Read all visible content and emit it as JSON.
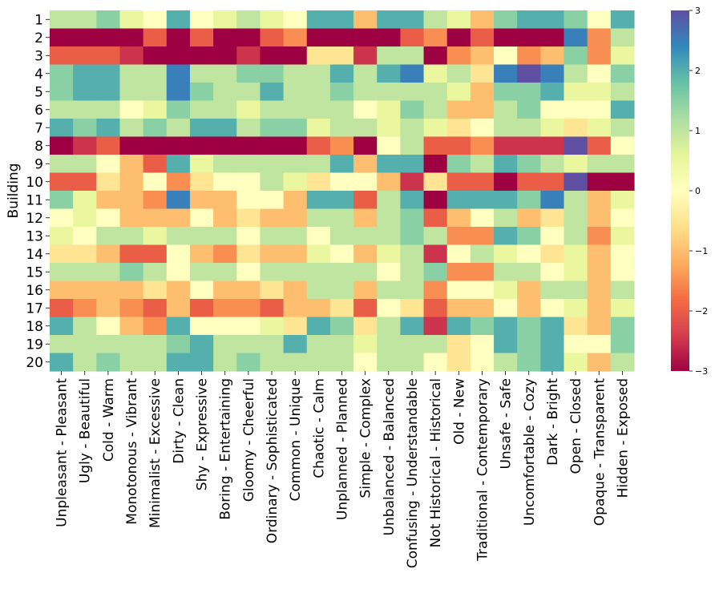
{
  "chart_data": {
    "type": "heatmap",
    "title": "",
    "xlabel": "",
    "ylabel": "Building",
    "colormap": "Spectral",
    "vmin": -3,
    "vmax": 3,
    "colorbar_ticks": [
      3,
      2,
      1,
      0,
      -1,
      -2,
      -3
    ],
    "colorbar_tick_labels": [
      "3",
      "2",
      "1",
      "0",
      "−1",
      "−2",
      "−3"
    ],
    "colorbar_placement": "right",
    "grid": false,
    "rows": [
      "1",
      "2",
      "3",
      "4",
      "5",
      "6",
      "7",
      "8",
      "9",
      "10",
      "11",
      "12",
      "13",
      "14",
      "15",
      "16",
      "17",
      "18",
      "19",
      "20"
    ],
    "columns": [
      "Unpleasant - Pleasant",
      "Ugly - Beautiful",
      "Cold - Warm",
      "Monotonous - Vibrant",
      "Minimalist - Excessive",
      "Dirty - Clean",
      "Shy - Expressive",
      "Boring - Entertaining",
      "Gloomy - Cheerful",
      "Ordinary - Sophisticated",
      "Common - Unique",
      "Chaotic - Calm",
      "Unplanned - Planned",
      "Simple - Complex",
      "Unbalanced - Balanced",
      "Confusing - Understandable",
      "Not Historical - Historical",
      "Old - New",
      "Traditional - Contemporary",
      "Unsafe - Safe",
      "Uncomfortable - Cozy",
      "Dark - Bright",
      "Open - Closed",
      "Opaque - Transparent",
      "Hidden - Exposed"
    ],
    "values": [
      [
        1,
        1,
        1.5,
        0.5,
        0,
        2,
        0,
        0.5,
        1,
        0.5,
        0,
        2,
        2,
        -1,
        2,
        2,
        1,
        0.5,
        -1,
        1.5,
        2,
        2,
        1.5,
        0,
        2
      ],
      [
        -3,
        -3,
        -3,
        -3,
        -2,
        -3,
        -2,
        -3,
        -3,
        -2,
        -1.5,
        -3,
        -3,
        -3,
        -3,
        -2,
        -1.5,
        -3,
        -2,
        -3,
        -3,
        -3,
        2.5,
        -1.5,
        1
      ],
      [
        -2,
        -2,
        -2,
        -2.5,
        -3,
        -3,
        -3,
        -3,
        -2.5,
        -3,
        -3,
        -0.5,
        -0.5,
        -2.5,
        1,
        1,
        -3,
        -1.5,
        -1,
        0,
        -1.5,
        -1,
        1.5,
        -1.5,
        0.5
      ],
      [
        1.5,
        2,
        2,
        1,
        1,
        2.5,
        1,
        1,
        1.5,
        1.5,
        1,
        1,
        2,
        1,
        2,
        2.5,
        0.5,
        1,
        -0.5,
        2.5,
        3,
        2.5,
        1,
        0,
        1.5
      ],
      [
        1.5,
        2,
        2,
        1,
        1,
        2.5,
        1.5,
        1,
        1,
        2,
        1,
        1,
        1.5,
        1,
        1,
        1,
        1,
        0.5,
        -1,
        1.5,
        1.5,
        2,
        0.5,
        0.5,
        1
      ],
      [
        1,
        1,
        1,
        0,
        0.5,
        1.5,
        1,
        1,
        0.5,
        1,
        1,
        1,
        1,
        0,
        0.5,
        1.5,
        1,
        -1,
        -1,
        1,
        1.5,
        0,
        0,
        0,
        2
      ],
      [
        2,
        1.5,
        2,
        1,
        1.5,
        1,
        2,
        2,
        1,
        1.5,
        1.5,
        0.5,
        1,
        1,
        0.5,
        1,
        0.5,
        -0.5,
        0,
        1,
        1,
        0.5,
        -0.5,
        0.5,
        1
      ],
      [
        -3,
        -2.5,
        -2,
        -3,
        -3,
        -3,
        -3,
        -3,
        -3,
        -3,
        -3,
        -2,
        -1.5,
        -3,
        0,
        1,
        -2,
        -2,
        -1.5,
        -2.5,
        -2.5,
        -2.5,
        3,
        -2,
        0
      ],
      [
        1,
        1,
        0,
        -1,
        -2,
        2,
        0.5,
        1,
        1,
        1,
        1,
        1,
        2,
        -1,
        2,
        2,
        -3,
        1.5,
        1,
        2,
        1.5,
        1,
        0.5,
        1,
        1
      ],
      [
        -2,
        -2,
        -0.5,
        -1,
        0,
        -1.5,
        -0.5,
        0,
        0,
        1,
        0.5,
        -0.5,
        0,
        0,
        -1,
        -2.5,
        -0.5,
        -2,
        -2,
        -3,
        -2,
        -2,
        3,
        -3,
        -3
      ],
      [
        1.5,
        0.5,
        -1,
        -1,
        -1.5,
        2.5,
        -1,
        -1,
        0,
        0,
        -1,
        2,
        2,
        -2,
        1,
        2,
        -3,
        2,
        2,
        2,
        1.5,
        2.5,
        1,
        -1,
        0.5
      ],
      [
        0,
        0.5,
        0,
        -1,
        -1,
        -1,
        0,
        -1,
        -0.5,
        -1,
        -1,
        1,
        1,
        -1,
        1,
        1.5,
        -2,
        -1,
        0,
        1,
        -1,
        -0.5,
        1,
        -1,
        0
      ],
      [
        0.5,
        0,
        1,
        1,
        0.5,
        1,
        1,
        1,
        0,
        1,
        1,
        0,
        1,
        1,
        1,
        1.5,
        1,
        -1.5,
        -1.5,
        2,
        1.5,
        0,
        1,
        -1.5,
        0.5
      ],
      [
        -0.5,
        -0.5,
        -1,
        -2,
        -2,
        0,
        -1,
        -1.5,
        -0.5,
        -1,
        -1,
        0.5,
        0,
        -1,
        0.5,
        1,
        -2.5,
        0,
        1,
        0.5,
        0,
        -0.5,
        0.5,
        -1,
        0
      ],
      [
        1,
        1,
        1,
        1.5,
        1,
        0,
        1,
        1,
        0,
        1,
        1,
        1,
        1,
        1,
        0,
        1,
        1.5,
        -1.5,
        -1.5,
        1,
        1,
        0,
        0.5,
        -1,
        0
      ],
      [
        -1,
        -1,
        -1,
        -1,
        -0.5,
        -1,
        0,
        -1,
        -1,
        -0.5,
        -1,
        1,
        1,
        -1,
        1,
        1,
        -1.5,
        0,
        0,
        0.5,
        -1,
        1,
        1,
        -1,
        1
      ],
      [
        -2,
        -1.5,
        -1,
        -1.5,
        -2,
        -1,
        -2,
        -1.5,
        -1.5,
        -2,
        -1,
        -1,
        -0.5,
        -2,
        0,
        -0.5,
        -2,
        -1,
        -1,
        0,
        -1,
        0,
        0.5,
        -1,
        0.5
      ],
      [
        2,
        1,
        0,
        -1,
        -1.5,
        2,
        0,
        0,
        0,
        0.5,
        -0.5,
        2,
        1.5,
        -0.5,
        1,
        2,
        -2.5,
        2,
        1.5,
        2,
        1.5,
        2,
        -0.5,
        -1,
        1.5
      ],
      [
        1,
        1,
        1,
        1,
        1,
        1.5,
        2,
        1,
        1,
        1,
        2,
        1,
        1,
        0.5,
        1,
        1,
        1,
        -0.5,
        0,
        2,
        1.5,
        2,
        0,
        0,
        1.5
      ],
      [
        2,
        1,
        1.5,
        1,
        1,
        2,
        2,
        1,
        1.5,
        1,
        1,
        1,
        1,
        0,
        1,
        1,
        0,
        -0.5,
        0,
        1,
        1.5,
        2,
        0.5,
        -1,
        1
      ]
    ]
  }
}
